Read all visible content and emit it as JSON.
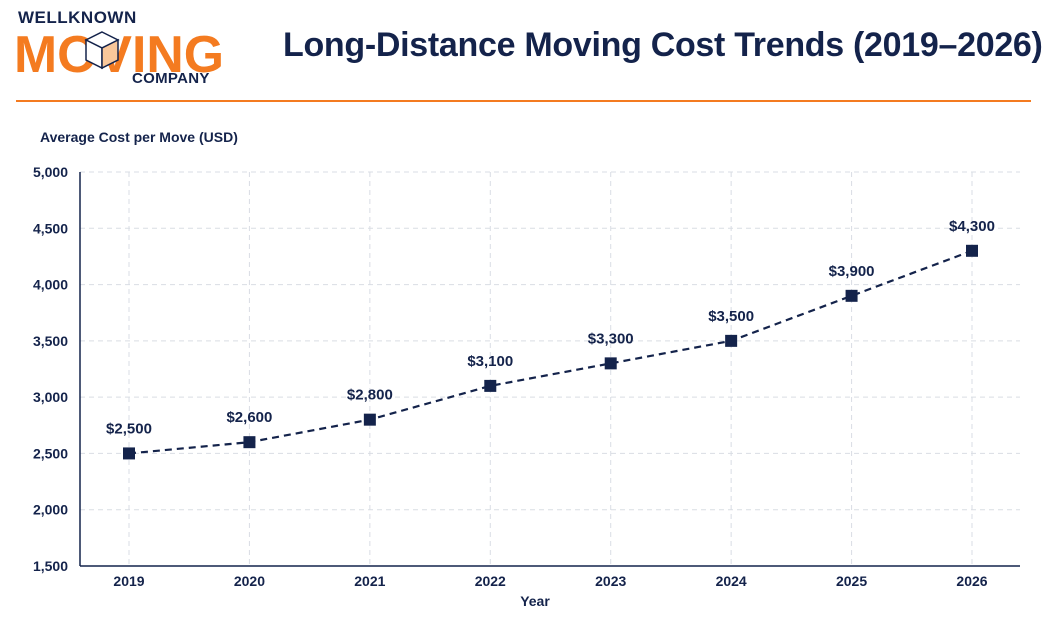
{
  "brand": {
    "top": "WELLKNOWN",
    "main": "MOVING",
    "bottom": "COMPANY",
    "accent_color": "#f47b20",
    "navy_color": "#14234b",
    "icon": "box-icon"
  },
  "chart_data": {
    "type": "line",
    "title": "Long-Distance Moving Cost Trends (2019–2026)",
    "xlabel": "Year",
    "ylabel": "Average Cost per Move (USD)",
    "x": [
      "2019",
      "2020",
      "2021",
      "2022",
      "2023",
      "2024",
      "2025",
      "2026"
    ],
    "series": [
      {
        "values": [
          2500,
          2600,
          2800,
          3100,
          3300,
          3500,
          3900,
          4300
        ],
        "data_labels": [
          "$2,500",
          "$2,600",
          "$2,800",
          "$3,100",
          "$3,300",
          "$3,500",
          "$3,900",
          "$4,300"
        ],
        "color": "#14234b",
        "line_style": "dashed",
        "marker": "square"
      }
    ],
    "ylim": [
      1500,
      5000
    ],
    "yticks": [
      1500,
      2000,
      2500,
      3000,
      3500,
      4000,
      4500,
      5000
    ],
    "ytick_labels": [
      "1,500",
      "2,000",
      "2,500",
      "3,000",
      "3,500",
      "4,000",
      "4,500",
      "5,000"
    ],
    "grid": true
  }
}
